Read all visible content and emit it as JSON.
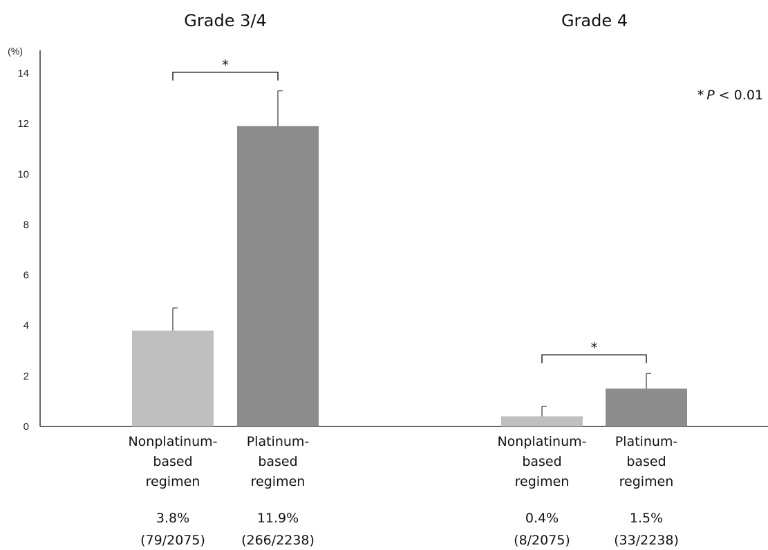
{
  "chart_data": {
    "type": "bar",
    "unit": "(%)",
    "ylim": [
      0,
      14
    ],
    "yticks": [
      "0",
      "2",
      "4",
      "6",
      "8",
      "10",
      "12",
      "14"
    ],
    "grid": false,
    "colors": {
      "nonplatinum": "#bfbfbf",
      "platinum": "#8c8c8c",
      "axis": "#333333"
    },
    "note": {
      "star": "*",
      "p": "P",
      "rest": " < 0.01"
    },
    "groups": [
      {
        "title": "Grade 3/4",
        "sig": "*",
        "bars": [
          {
            "category": [
              "Nonplatinum-",
              "based",
              "regimen"
            ],
            "value": 3.8,
            "error_upper": 4.7,
            "label": "3.8%",
            "count": "(79/2075)"
          },
          {
            "category": [
              "Platinum-",
              "based",
              "regimen"
            ],
            "value": 11.9,
            "error_upper": 13.3,
            "label": "11.9%",
            "count": "(266/2238)"
          }
        ]
      },
      {
        "title": "Grade 4",
        "sig": "*",
        "bars": [
          {
            "category": [
              "Nonplatinum-",
              "based",
              "regimen"
            ],
            "value": 0.4,
            "error_upper": 0.8,
            "label": "0.4%",
            "count": "(8/2075)"
          },
          {
            "category": [
              "Platinum-",
              "based",
              "regimen"
            ],
            "value": 1.5,
            "error_upper": 2.1,
            "label": "1.5%",
            "count": "(33/2238)"
          }
        ]
      }
    ]
  }
}
